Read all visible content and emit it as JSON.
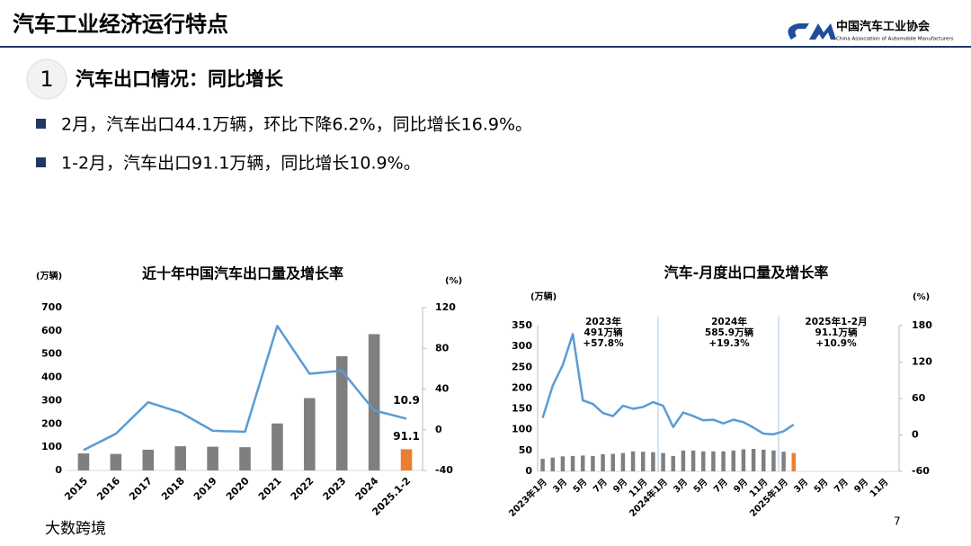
{
  "header": {
    "title": "汽车工业经济运行特点",
    "org_name": "中国汽车工业协会",
    "org_name_en": "China Association of Automobile Manufacturers"
  },
  "section": {
    "number": "1",
    "title": "汽车出口情况：同比增长"
  },
  "bullets": [
    "2月，汽车出口44.1万辆，环比下降6.2%，同比增长16.9%。",
    "1-2月，汽车出口91.1万辆，同比增长10.9%。"
  ],
  "page_number": "7",
  "watermark": "大数跨境",
  "chart_data": [
    {
      "type": "bar",
      "title": "近十年中国汽车出口量及增长率",
      "y_label": "(万辆)",
      "y2_label": "(%)",
      "categories": [
        "2015",
        "2016",
        "2017",
        "2018",
        "2019",
        "2020",
        "2021",
        "2022",
        "2023",
        "2024",
        "2025.1-2"
      ],
      "series": [
        {
          "type": "bar",
          "axis": "y",
          "color": "#7f7f7f",
          "colors": [
            "#7f7f7f",
            "#7f7f7f",
            "#7f7f7f",
            "#7f7f7f",
            "#7f7f7f",
            "#7f7f7f",
            "#7f7f7f",
            "#7f7f7f",
            "#7f7f7f",
            "#7f7f7f",
            "#ed7d31"
          ],
          "values": [
            73,
            71,
            89,
            104,
            102,
            100,
            202,
            311,
            491,
            586,
            91.1
          ],
          "value_labels": [
            null,
            null,
            null,
            null,
            null,
            null,
            null,
            null,
            null,
            null,
            "91.1"
          ]
        },
        {
          "type": "line",
          "axis": "y2",
          "color": "#5b9bd5",
          "values": [
            -20,
            -4,
            27,
            17,
            -1,
            -2,
            102,
            55,
            58,
            19,
            10.9
          ],
          "value_labels": [
            null,
            null,
            null,
            null,
            null,
            null,
            null,
            null,
            null,
            null,
            "10.9"
          ]
        }
      ],
      "ylim": [
        0,
        700
      ],
      "yticks": [
        0,
        100,
        200,
        300,
        400,
        500,
        600,
        700
      ],
      "y2lim": [
        -40,
        120
      ],
      "y2ticks": [
        -40,
        0,
        40,
        80,
        120
      ]
    },
    {
      "type": "bar",
      "title": "汽车-月度出口量及增长率",
      "y_label": "(万辆)",
      "y2_label": "(%)",
      "categories": [
        "2023年1月",
        null,
        "3月",
        null,
        "5月",
        null,
        "7月",
        null,
        "9月",
        null,
        "11月",
        null,
        "2024年1月",
        null,
        "3月",
        null,
        "5月",
        null,
        "7月",
        null,
        "9月",
        null,
        "11月",
        null,
        "2025年1月",
        null,
        "3月",
        null,
        "5月",
        null,
        "7月",
        null,
        "9月",
        null,
        "11月",
        null
      ],
      "series": [
        {
          "type": "bar",
          "axis": "y",
          "color": "#7f7f7f",
          "colors": [
            "#7f7f7f",
            "#7f7f7f",
            "#7f7f7f",
            "#7f7f7f",
            "#7f7f7f",
            "#7f7f7f",
            "#7f7f7f",
            "#7f7f7f",
            "#7f7f7f",
            "#7f7f7f",
            "#7f7f7f",
            "#7f7f7f",
            "#7f7f7f",
            "#7f7f7f",
            "#7f7f7f",
            "#7f7f7f",
            "#7f7f7f",
            "#7f7f7f",
            "#7f7f7f",
            "#7f7f7f",
            "#7f7f7f",
            "#7f7f7f",
            "#7f7f7f",
            "#7f7f7f",
            "#7f7f7f",
            "#ed7d31",
            null,
            null,
            null,
            null,
            null,
            null,
            null,
            null,
            null,
            null
          ],
          "values": [
            30,
            33,
            36,
            37,
            38,
            37,
            41,
            42,
            44,
            48,
            47,
            46,
            44,
            37,
            50,
            50,
            48,
            48,
            48,
            50,
            53,
            54,
            52,
            50,
            47,
            44.1,
            null,
            null,
            null,
            null,
            null,
            null,
            null,
            null,
            null,
            null
          ]
        },
        {
          "type": "line",
          "axis": "y2",
          "color": "#5b9bd5",
          "values": [
            28,
            81,
            115,
            166,
            57,
            51,
            36,
            31,
            48,
            43,
            46,
            54,
            48,
            13,
            37,
            31,
            24,
            25,
            19,
            25,
            21,
            12,
            2,
            1,
            6,
            16.9,
            null,
            null,
            null,
            null,
            null,
            null,
            null,
            null,
            null,
            null
          ]
        }
      ],
      "annotations": [
        [
          "2023年",
          "491万辆",
          "+57.8%"
        ],
        [
          "2024年",
          "585.9万辆",
          "+19.3%"
        ],
        [
          "2025年1-2月",
          "91.1万辆",
          "+10.9%"
        ]
      ],
      "ylim": [
        0,
        350
      ],
      "yticks": [
        0,
        50,
        100,
        150,
        200,
        250,
        300,
        350
      ],
      "y2lim": [
        -60,
        180
      ],
      "y2ticks": [
        -60,
        0,
        60,
        120,
        180
      ]
    }
  ]
}
